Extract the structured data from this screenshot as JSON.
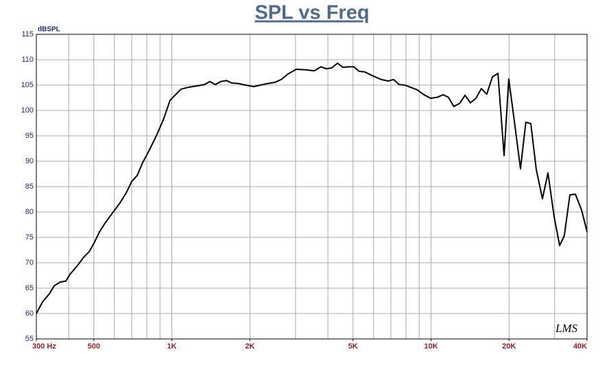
{
  "chart_data": {
    "type": "line",
    "title": "SPL vs Freq",
    "y_label": "dBSPL",
    "watermark": "LMS",
    "log_x": true,
    "grid": true,
    "color": "#000000",
    "xlim": [
      300,
      40000
    ],
    "ylim": [
      55,
      115
    ],
    "yticks": [
      55,
      60,
      65,
      70,
      75,
      80,
      85,
      90,
      95,
      100,
      105,
      110,
      115
    ],
    "xticks": [
      {
        "value": 300,
        "label": "300  Hz"
      },
      500,
      {
        "value": 1000,
        "label": "1K"
      },
      {
        "value": 2000,
        "label": "2K"
      },
      {
        "value": 5000,
        "label": "5K"
      },
      {
        "value": 10000,
        "label": "10K"
      },
      {
        "value": 20000,
        "label": "20K"
      },
      {
        "value": 40000,
        "label": "40K"
      }
    ],
    "xgrid": [
      300,
      400,
      500,
      600,
      700,
      800,
      900,
      1000,
      2000,
      3000,
      4000,
      5000,
      6000,
      7000,
      8000,
      9000,
      10000,
      20000,
      30000,
      40000
    ],
    "x": [
      300,
      317,
      337,
      352,
      371,
      390,
      404,
      430,
      457,
      480,
      500,
      526,
      552,
      586,
      631,
      667,
      700,
      735,
      771,
      815,
      871,
      926,
      984,
      1033,
      1085,
      1167,
      1271,
      1334,
      1401,
      1471,
      1545,
      1622,
      1703,
      1810,
      1924,
      2070,
      2199,
      2340,
      2484,
      2643,
      2808,
      3021,
      3288,
      3540,
      3759,
      3948,
      4143,
      4356,
      4572,
      4800,
      5040,
      5280,
      5550,
      5910,
      6420,
      6840,
      7170,
      7530,
      7920,
      8400,
      8820,
      9390,
      9960,
      10590,
      11130,
      11670,
      12240,
      12900,
      13530,
      14190,
      14910,
      15630,
      16410,
      17250,
      18120,
      19140,
      19950,
      20940,
      22140,
      23220,
      24270,
      25470,
      26910,
      28260,
      29850,
      31350,
      32670,
      34350,
      36060,
      38100,
      40000
    ],
    "values": [
      60.0,
      62.3,
      63.9,
      65.5,
      66.2,
      66.4,
      67.7,
      69.3,
      71.1,
      72.2,
      73.8,
      76.1,
      77.8,
      79.6,
      81.8,
      83.8,
      86.0,
      87.2,
      89.7,
      92.0,
      95.0,
      98.1,
      102.0,
      103.1,
      104.2,
      104.6,
      104.9,
      105.1,
      105.7,
      105.1,
      105.7,
      105.9,
      105.4,
      105.3,
      105.0,
      104.7,
      105.0,
      105.3,
      105.5,
      106.1,
      107.2,
      108.1,
      108.0,
      107.8,
      108.6,
      108.2,
      108.4,
      109.3,
      108.5,
      108.6,
      108.6,
      107.7,
      107.6,
      106.9,
      106.1,
      105.8,
      106.1,
      105.1,
      105.0,
      104.5,
      104.1,
      103.1,
      102.4,
      102.6,
      103.1,
      102.6,
      100.8,
      101.4,
      103.0,
      101.5,
      102.4,
      104.3,
      103.2,
      106.6,
      107.3,
      91.1,
      106.2,
      98.1,
      88.5,
      97.7,
      97.4,
      88.4,
      82.6,
      87.7,
      79.1,
      73.4,
      75.3,
      83.4,
      83.5,
      80.4,
      76.1
    ]
  }
}
